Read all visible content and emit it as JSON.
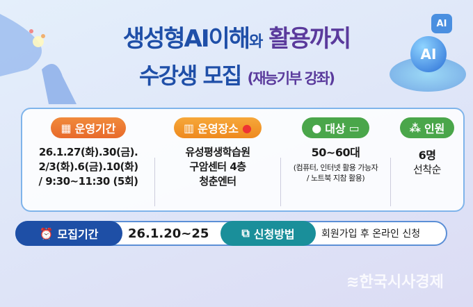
{
  "title": {
    "line1_a": "생성형AI이해",
    "line1_b": "와",
    "line1_c": "활용까지",
    "line2_a": "수강생 모집",
    "line2_b": "(재능기부 강좌)"
  },
  "decor": {
    "ai_label_small": "AI",
    "ai_label_large": "AI"
  },
  "info": [
    {
      "label": "운영기간",
      "icon": "calendar-icon",
      "lines": [
        "26.1.27(화).30(금).",
        "2/3(화).6(금).10(화)",
        "/ 9:30~11:30 (5회)"
      ]
    },
    {
      "label": "운영장소",
      "icon": "building-icon",
      "lines": [
        "유성평생학습원",
        "구암센터 4층",
        "청춘엔터"
      ]
    },
    {
      "label": "대상",
      "icon": "person-icon",
      "lines": [
        "50~60대"
      ],
      "note": [
        "(컴퓨터, 인터넷 활용 가능자",
        "/ 노트북 지참 활용)"
      ]
    },
    {
      "label": "인원",
      "icon": "people-icon",
      "lines": [
        "6명",
        "선착순"
      ]
    }
  ],
  "recruit": {
    "label": "모집기간",
    "icon": "alarm-clock-icon",
    "value": "26.1.20~25"
  },
  "apply": {
    "label": "신청방법",
    "icon": "browser-cursor-icon",
    "value": "회원가입 후 온라인 신청"
  },
  "watermark": "한국시사경제",
  "colors": {
    "blue": "#1f4fa8",
    "purple": "#5a3a9c",
    "orange": "#e86a2a",
    "green": "#4aa64a",
    "teal": "#1a8f9a",
    "navy": "#1e4fa6"
  }
}
